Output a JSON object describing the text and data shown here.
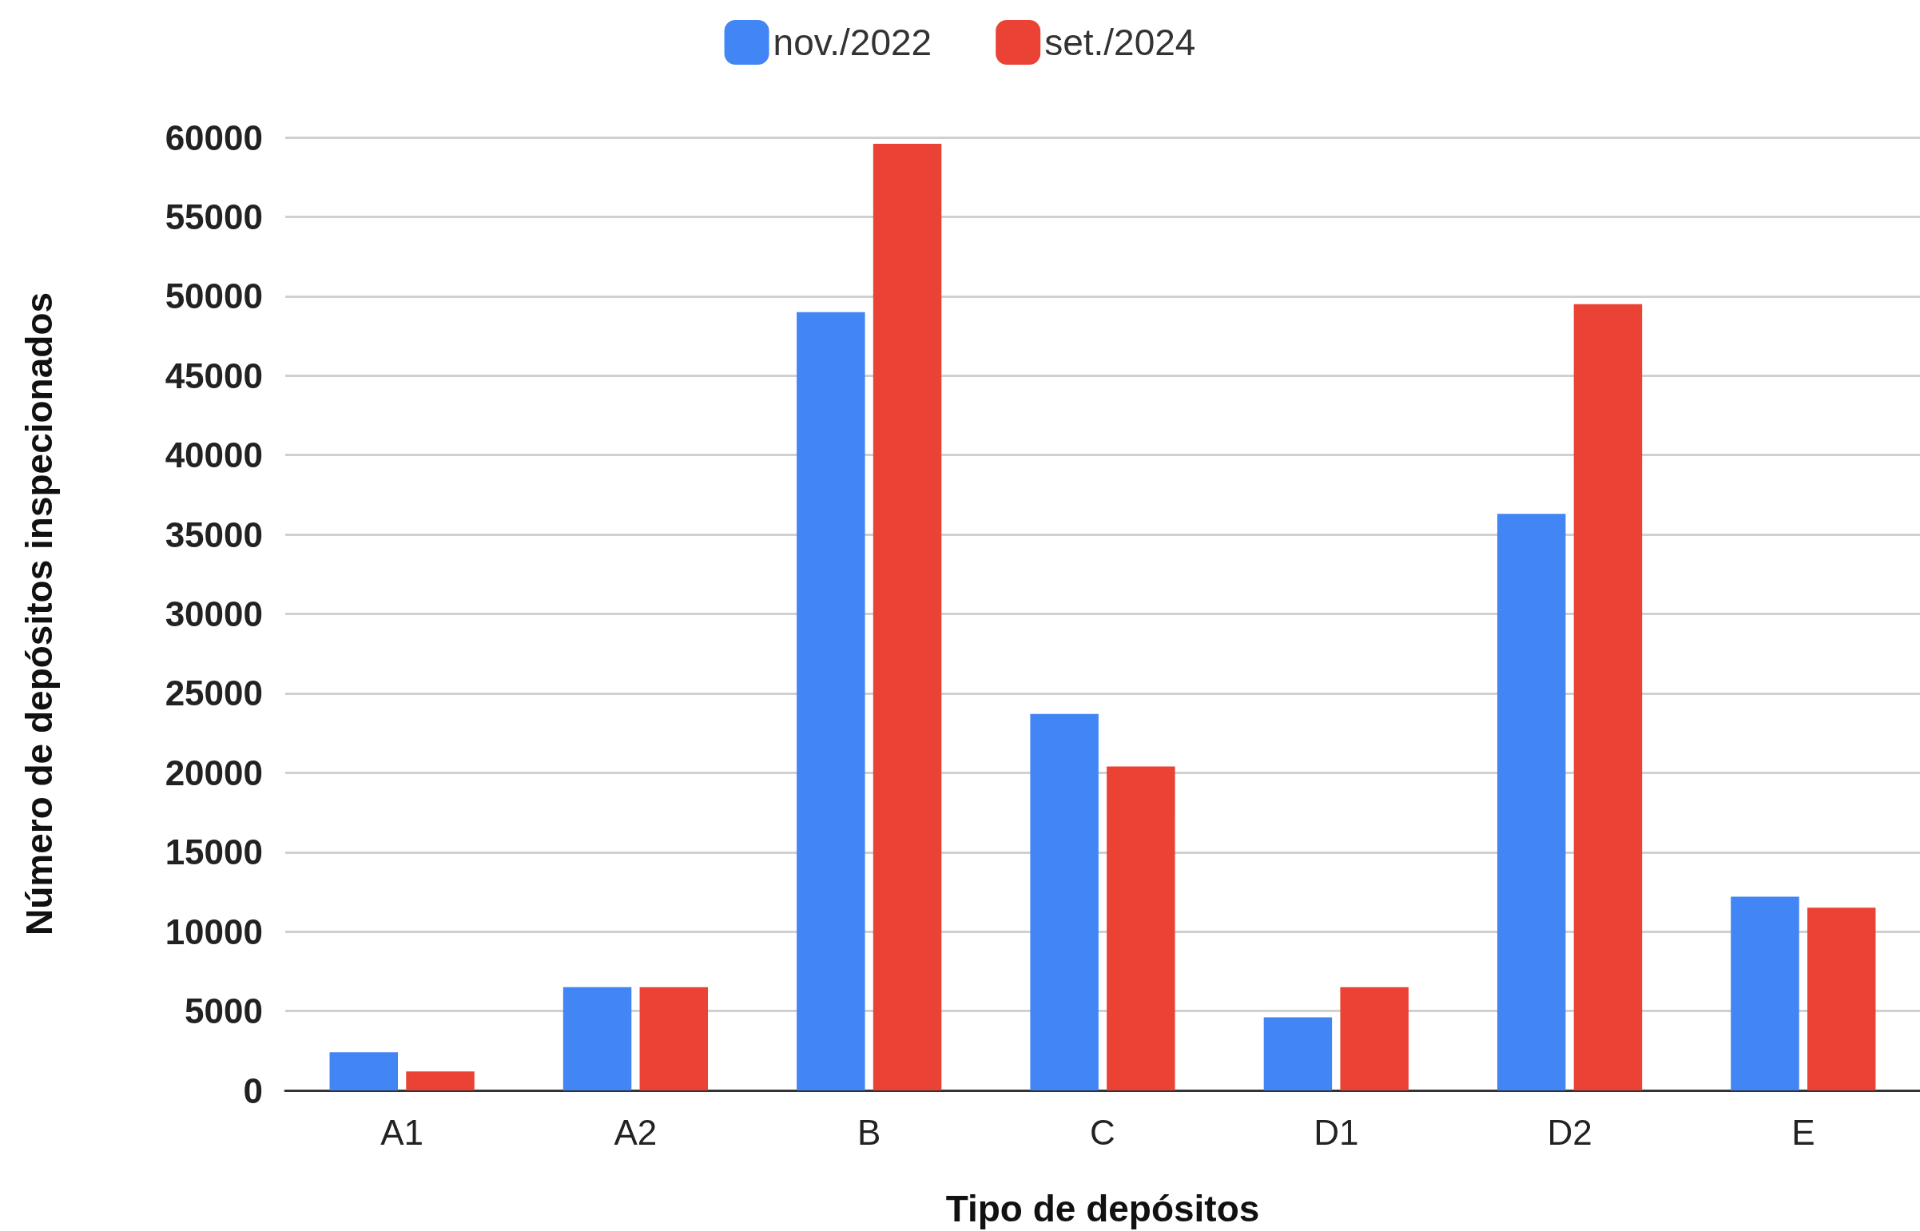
{
  "chart_data": {
    "type": "bar",
    "xlabel": "Tipo de depósitos",
    "ylabel": "Número de depósitos inspecionados",
    "categories": [
      "A1",
      "A2",
      "B",
      "C",
      "D1",
      "D2",
      "E"
    ],
    "series": [
      {
        "name": "nov./2022",
        "color": "#4285f4",
        "values": [
          2400,
          6500,
          49000,
          23700,
          4600,
          36300,
          12200
        ]
      },
      {
        "name": "set./2024",
        "color": "#ea4335",
        "values": [
          1200,
          6500,
          59600,
          20400,
          6500,
          49500,
          11500
        ]
      }
    ],
    "ylim": [
      0,
      60000
    ],
    "yticks": [
      0,
      5000,
      10000,
      15000,
      20000,
      25000,
      30000,
      35000,
      40000,
      45000,
      50000,
      55000,
      60000
    ],
    "grid": "y",
    "legend": "top"
  }
}
